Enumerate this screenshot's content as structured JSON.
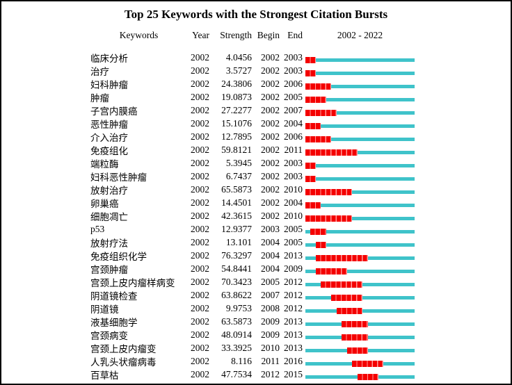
{
  "chart_data": {
    "type": "table",
    "title": "Top 25 Keywords with the Strongest Citation Bursts",
    "columns": {
      "keyword": "Keywords",
      "year": "Year",
      "strength": "Strength",
      "begin": "Begin",
      "end": "End",
      "period": "2002 - 2022"
    },
    "timeline": {
      "start": 2002,
      "end": 2022
    },
    "colors": {
      "burst": "#f40000",
      "burst_tick": "#ff9c9c",
      "line": "#3fc3ca"
    },
    "rows": [
      {
        "keyword": "临床分析",
        "year": "2002",
        "strength": "4.0456",
        "begin": 2002,
        "end": 2003
      },
      {
        "keyword": "治疗",
        "year": "2002",
        "strength": "3.5727",
        "begin": 2002,
        "end": 2003
      },
      {
        "keyword": "妇科肿瘤",
        "year": "2002",
        "strength": "24.3806",
        "begin": 2002,
        "end": 2006
      },
      {
        "keyword": "肿瘤",
        "year": "2002",
        "strength": "19.0873",
        "begin": 2002,
        "end": 2005
      },
      {
        "keyword": "子宫内膜癌",
        "year": "2002",
        "strength": "27.2277",
        "begin": 2002,
        "end": 2007
      },
      {
        "keyword": "恶性肿瘤",
        "year": "2002",
        "strength": "15.1076",
        "begin": 2002,
        "end": 2004
      },
      {
        "keyword": "介入治疗",
        "year": "2002",
        "strength": "12.7895",
        "begin": 2002,
        "end": 2006
      },
      {
        "keyword": "免疫组化",
        "year": "2002",
        "strength": "59.8121",
        "begin": 2002,
        "end": 2011
      },
      {
        "keyword": "端粒酶",
        "year": "2002",
        "strength": "5.3945",
        "begin": 2002,
        "end": 2003
      },
      {
        "keyword": "妇科恶性肿瘤",
        "year": "2002",
        "strength": "6.7437",
        "begin": 2002,
        "end": 2003
      },
      {
        "keyword": "放射治疗",
        "year": "2002",
        "strength": "65.5873",
        "begin": 2002,
        "end": 2010
      },
      {
        "keyword": "卵巢癌",
        "year": "2002",
        "strength": "14.4501",
        "begin": 2002,
        "end": 2004
      },
      {
        "keyword": "细胞凋亡",
        "year": "2002",
        "strength": "42.3615",
        "begin": 2002,
        "end": 2010
      },
      {
        "keyword": "p53",
        "year": "2002",
        "strength": "12.9377",
        "begin": 2003,
        "end": 2005
      },
      {
        "keyword": "放射疗法",
        "year": "2002",
        "strength": "13.101",
        "begin": 2004,
        "end": 2005
      },
      {
        "keyword": "免疫组织化学",
        "year": "2002",
        "strength": "76.3297",
        "begin": 2004,
        "end": 2013
      },
      {
        "keyword": "宫颈肿瘤",
        "year": "2002",
        "strength": "54.8441",
        "begin": 2004,
        "end": 2009
      },
      {
        "keyword": "宫颈上皮内瘤样病变",
        "year": "2002",
        "strength": "70.3423",
        "begin": 2005,
        "end": 2012
      },
      {
        "keyword": "阴道镜检查",
        "year": "2002",
        "strength": "63.8622",
        "begin": 2007,
        "end": 2012
      },
      {
        "keyword": "阴道镜",
        "year": "2002",
        "strength": "9.9753",
        "begin": 2008,
        "end": 2012
      },
      {
        "keyword": "液基细胞学",
        "year": "2002",
        "strength": "63.5873",
        "begin": 2009,
        "end": 2013
      },
      {
        "keyword": "宫颈病变",
        "year": "2002",
        "strength": "48.0914",
        "begin": 2009,
        "end": 2013
      },
      {
        "keyword": "宫颈上皮内瘤变",
        "year": "2002",
        "strength": "33.3925",
        "begin": 2010,
        "end": 2013
      },
      {
        "keyword": "人乳头状瘤病毒",
        "year": "2002",
        "strength": "8.116",
        "begin": 2011,
        "end": 2016
      },
      {
        "keyword": "百草枯",
        "year": "2002",
        "strength": "47.7534",
        "begin": 2012,
        "end": 2015
      }
    ]
  }
}
